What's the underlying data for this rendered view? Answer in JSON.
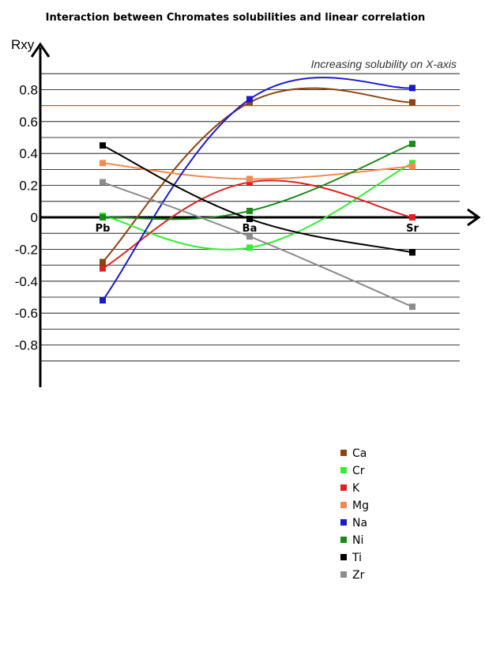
{
  "chart_data": {
    "type": "line",
    "title": "Interaction between Chromates solubilities and linear correlation",
    "ylabel": "Rxy",
    "annotation": "Increasing solubility on X-axis",
    "categories": [
      "Pb",
      "Ba",
      "Sr"
    ],
    "yticks": [
      "0.8",
      "0.6",
      "0.4",
      "0.2",
      "0",
      "-0.2",
      "-0.4",
      "-0.6",
      "-0.8"
    ],
    "ylim": [
      -0.9,
      0.9
    ],
    "grid": true,
    "reference_line": {
      "y": 0.7,
      "color": "#b06a2a"
    },
    "legend_position": "bottom-center",
    "series": [
      {
        "name": "Ca",
        "color": "#8b4513",
        "values": [
          -0.28,
          0.72,
          0.72
        ]
      },
      {
        "name": "Cr",
        "color": "#33ee33",
        "values": [
          0.01,
          -0.19,
          0.34
        ]
      },
      {
        "name": "K",
        "color": "#dd2222",
        "values": [
          -0.32,
          0.22,
          0.0
        ]
      },
      {
        "name": "Mg",
        "color": "#f08a50",
        "values": [
          0.34,
          0.24,
          0.32
        ]
      },
      {
        "name": "Na",
        "color": "#1a1acc",
        "values": [
          -0.52,
          0.74,
          0.81
        ]
      },
      {
        "name": "Ni",
        "color": "#1a8a1a",
        "values": [
          0.0,
          0.04,
          0.46
        ]
      },
      {
        "name": "Ti",
        "color": "#000000",
        "values": [
          0.45,
          -0.01,
          -0.22
        ]
      },
      {
        "name": "Zr",
        "color": "#8c8c8c",
        "values": [
          0.22,
          -0.12,
          -0.56
        ]
      }
    ]
  }
}
